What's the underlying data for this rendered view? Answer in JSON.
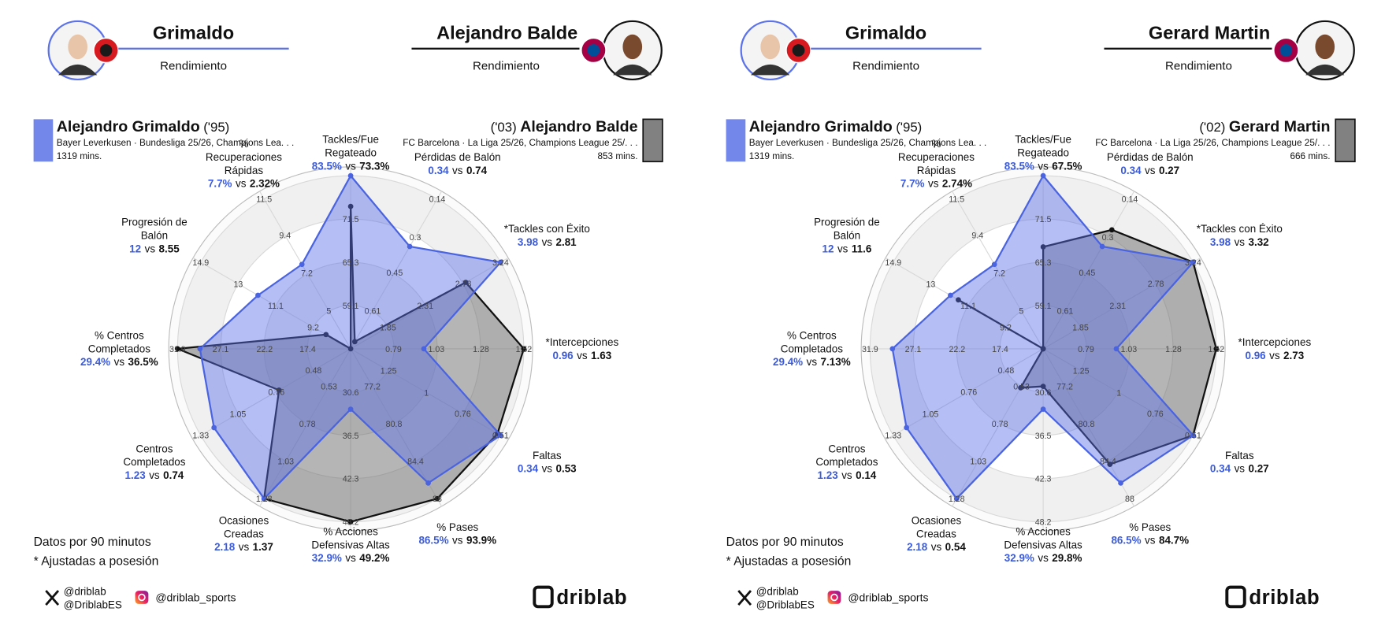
{
  "chart_data": [
    {
      "type": "radar",
      "header_left": {
        "name": "Grimaldo",
        "subtitle": "Rendimiento"
      },
      "header_right": {
        "name": "Alejandro Balde",
        "subtitle": "Rendimiento"
      },
      "separator": "vs",
      "categories": [
        [
          "Tackles/Fue",
          "Regateado"
        ],
        [
          "Pérdidas de Balón"
        ],
        [
          "*Tackles con Éxito"
        ],
        [
          "*Intercepciones"
        ],
        [
          "Faltas"
        ],
        [
          "% Pases"
        ],
        [
          "% Acciones",
          "Defensivas Altas"
        ],
        [
          "Ocasiones",
          "Creadas"
        ],
        [
          "Centros",
          "Completados"
        ],
        [
          "% Centros",
          "Completados"
        ],
        [
          "Progresión de",
          "Balón"
        ],
        [
          "%",
          "Recuperaciones",
          "Rápidas"
        ]
      ],
      "axes": [
        {
          "lim": [
            52.9,
            77.7
          ],
          "ticks": [
            59.1,
            65.3,
            71.5
          ]
        },
        {
          "lim": [
            0.77,
            0.14
          ],
          "ticks": [
            0.61,
            0.45,
            0.3,
            0.14
          ]
        },
        {
          "lim": [
            1.39,
            3.24
          ],
          "ticks": [
            1.85,
            2.31,
            2.78,
            3.24
          ]
        },
        {
          "lim": [
            0.55,
            1.52
          ],
          "ticks": [
            0.79,
            1.03,
            1.28,
            1.52
          ]
        },
        {
          "lim": [
            1.5,
            0.51
          ],
          "ticks": [
            1.25,
            1,
            0.76,
            0.51
          ]
        },
        {
          "lim": [
            73.6,
            88
          ],
          "ticks": [
            77.2,
            80.8,
            84.4,
            88
          ]
        },
        {
          "lim": [
            24.7,
            48.2
          ],
          "ticks": [
            30.6,
            36.5,
            42.3,
            48.2
          ]
        },
        {
          "lim": [
            0.28,
            1.28
          ],
          "ticks": [
            0.53,
            0.78,
            1.03,
            1.28
          ]
        },
        {
          "lim": [
            0.2,
            1.33
          ],
          "ticks": [
            0.48,
            0.76,
            1.05,
            1.33
          ]
        },
        {
          "lim": [
            12.6,
            31.9
          ],
          "ticks": [
            17.4,
            22.2,
            27.1,
            31.9
          ]
        },
        {
          "lim": [
            7.3,
            14.9
          ],
          "ticks": [
            9.2,
            11.1,
            13,
            14.9
          ]
        },
        {
          "lim": [
            2.8,
            11.5
          ],
          "ticks": [
            5,
            7.2,
            9.4,
            11.5
          ]
        }
      ],
      "series": [
        {
          "name": "Alejandro Grimaldo",
          "born": "('95)",
          "team": "Bayer Leverkusen · Bundesliga 25/26, Champions Lea. . .",
          "minutes": "1319 mins.",
          "color": "#5b72e8",
          "values": [
            83.5,
            0.34,
            3.98,
            0.96,
            0.34,
            86.5,
            32.9,
            2.18,
            1.23,
            29.4,
            12,
            7.7
          ],
          "value_labels": [
            "83.5%",
            "0.34",
            "3.98",
            "0.96",
            "0.34",
            "86.5%",
            "32.9%",
            "2.18",
            "1.23",
            "29.4%",
            "12",
            "7.7%"
          ]
        },
        {
          "name": "Alejandro Balde",
          "born": "('03)",
          "team": "FC Barcelona · La Liga 25/26, Champions League 25/. . .",
          "minutes": "853 mins.",
          "color": "#6b6b6b",
          "values": [
            73.3,
            0.74,
            2.81,
            1.63,
            0.53,
            93.9,
            49.2,
            1.37,
            0.74,
            36.5,
            8.55,
            2.32
          ],
          "value_labels": [
            "73.3%",
            "0.74",
            "2.81",
            "1.63",
            "0.53",
            "93.9%",
            "49.2%",
            "1.37",
            "0.74",
            "36.5%",
            "8.55",
            "2.32%"
          ]
        }
      ]
    },
    {
      "type": "radar",
      "header_left": {
        "name": "Grimaldo",
        "subtitle": "Rendimiento"
      },
      "header_right": {
        "name": "Gerard Martin",
        "subtitle": "Rendimiento"
      },
      "separator": "vs",
      "categories": [
        [
          "Tackles/Fue",
          "Regateado"
        ],
        [
          "Pérdidas de Balón"
        ],
        [
          "*Tackles con Éxito"
        ],
        [
          "*Intercepciones"
        ],
        [
          "Faltas"
        ],
        [
          "% Pases"
        ],
        [
          "% Acciones",
          "Defensivas Altas"
        ],
        [
          "Ocasiones",
          "Creadas"
        ],
        [
          "Centros",
          "Completados"
        ],
        [
          "% Centros",
          "Completados"
        ],
        [
          "Progresión de",
          "Balón"
        ],
        [
          "%",
          "Recuperaciones",
          "Rápidas"
        ]
      ],
      "axes": [
        {
          "lim": [
            52.9,
            77.7
          ],
          "ticks": [
            59.1,
            65.3,
            71.5
          ]
        },
        {
          "lim": [
            0.77,
            0.14
          ],
          "ticks": [
            0.61,
            0.45,
            0.3,
            0.14
          ]
        },
        {
          "lim": [
            1.39,
            3.24
          ],
          "ticks": [
            1.85,
            2.31,
            2.78,
            3.24
          ]
        },
        {
          "lim": [
            0.55,
            1.52
          ],
          "ticks": [
            0.79,
            1.03,
            1.28,
            1.52
          ]
        },
        {
          "lim": [
            1.5,
            0.51
          ],
          "ticks": [
            1.25,
            1,
            0.76,
            0.51
          ]
        },
        {
          "lim": [
            73.6,
            88
          ],
          "ticks": [
            77.2,
            80.8,
            84.4,
            88
          ]
        },
        {
          "lim": [
            24.7,
            48.2
          ],
          "ticks": [
            30.6,
            36.5,
            42.3,
            48.2
          ]
        },
        {
          "lim": [
            0.28,
            1.28
          ],
          "ticks": [
            0.53,
            0.78,
            1.03,
            1.28
          ]
        },
        {
          "lim": [
            0.2,
            1.33
          ],
          "ticks": [
            0.48,
            0.76,
            1.05,
            1.33
          ]
        },
        {
          "lim": [
            12.6,
            31.9
          ],
          "ticks": [
            17.4,
            22.2,
            27.1,
            31.9
          ]
        },
        {
          "lim": [
            7.3,
            14.9
          ],
          "ticks": [
            9.2,
            11.1,
            13,
            14.9
          ]
        },
        {
          "lim": [
            2.8,
            11.5
          ],
          "ticks": [
            5,
            7.2,
            9.4,
            11.5
          ]
        }
      ],
      "series": [
        {
          "name": "Alejandro Grimaldo",
          "born": "('95)",
          "team": "Bayer Leverkusen · Bundesliga 25/26, Champions Lea. . .",
          "minutes": "1319 mins.",
          "color": "#5b72e8",
          "values": [
            83.5,
            0.34,
            3.98,
            0.96,
            0.34,
            86.5,
            32.9,
            2.18,
            1.23,
            29.4,
            12,
            7.7
          ],
          "value_labels": [
            "83.5%",
            "0.34",
            "3.98",
            "0.96",
            "0.34",
            "86.5%",
            "32.9%",
            "2.18",
            "1.23",
            "29.4%",
            "12",
            "7.7%"
          ]
        },
        {
          "name": "Gerard Martin",
          "born": "('02)",
          "team": "FC Barcelona · La Liga 25/26, Champions League 25/. . .",
          "minutes": "666 mins.",
          "color": "#6b6b6b",
          "values": [
            67.5,
            0.27,
            3.32,
            2.73,
            0.27,
            84.7,
            29.8,
            0.54,
            0.14,
            7.13,
            11.6,
            2.74
          ],
          "value_labels": [
            "67.5%",
            "0.27",
            "3.32",
            "2.73",
            "0.27",
            "84.7%",
            "29.8%",
            "0.54",
            "0.14",
            "7.13%",
            "11.6",
            "2.74%"
          ]
        }
      ]
    }
  ],
  "footer": {
    "notes": [
      "Datos por 90 minutos",
      "* Ajustadas a posesión"
    ],
    "x_handles": [
      "@driblab",
      "@DriblabES"
    ],
    "instagram": "@driblab_sports",
    "brand": "driblab"
  }
}
